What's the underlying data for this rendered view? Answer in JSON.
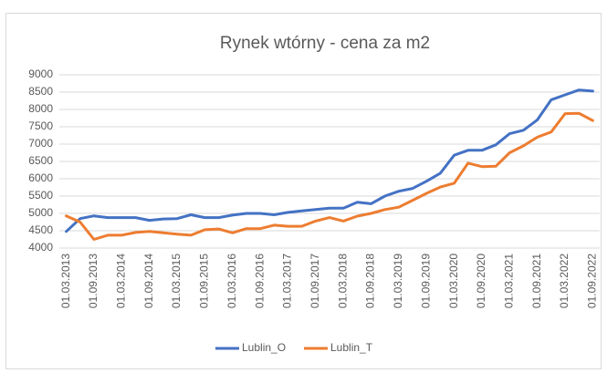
{
  "chart_data": {
    "type": "line",
    "title": "Rynek wtórny - cena za m2",
    "categories": [
      "01.03.2013",
      null,
      "01.09.2013",
      null,
      "01.03.2014",
      null,
      "01.09.2014",
      null,
      "01.03.2015",
      null,
      "01.09.2015",
      null,
      "01.03.2016",
      null,
      "01.09.2016",
      null,
      "01.03.2017",
      null,
      "01.09.2017",
      null,
      "01.03.2018",
      null,
      "01.09.2018",
      null,
      "01.03.2019",
      null,
      "01.09.2019",
      null,
      "01.03.2020",
      null,
      "01.09.2020",
      null,
      "01.03.2021",
      null,
      "01.09.2021",
      null,
      "01.03.2022",
      null,
      "01.09.2022"
    ],
    "series": [
      {
        "name": "Lublin_O",
        "color": "#4472c4",
        "values": [
          4480,
          4850,
          4930,
          4880,
          4880,
          4880,
          4800,
          4840,
          4850,
          4960,
          4880,
          4880,
          4950,
          5000,
          5000,
          4960,
          5030,
          5070,
          5110,
          5150,
          5150,
          5320,
          5280,
          5500,
          5640,
          5720,
          5930,
          6160,
          6680,
          6820,
          6820,
          6980,
          7300,
          7400,
          7700,
          8280,
          8420,
          8560,
          8530
        ]
      },
      {
        "name": "Lublin_T",
        "color": "#ed7d31",
        "values": [
          4930,
          4750,
          4250,
          4370,
          4370,
          4450,
          4480,
          4440,
          4400,
          4370,
          4530,
          4550,
          4440,
          4560,
          4560,
          4660,
          4630,
          4630,
          4780,
          4880,
          4780,
          4920,
          5000,
          5110,
          5180,
          5380,
          5580,
          5760,
          5870,
          6450,
          6350,
          6360,
          6750,
          6950,
          7200,
          7350,
          7880,
          7890,
          7680
        ]
      }
    ],
    "ylim": [
      4000,
      9000
    ],
    "yticks": [
      4000,
      4500,
      5000,
      5500,
      6000,
      6500,
      7000,
      7500,
      8000,
      8500,
      9000
    ],
    "grid": true,
    "legend": "bottom"
  }
}
